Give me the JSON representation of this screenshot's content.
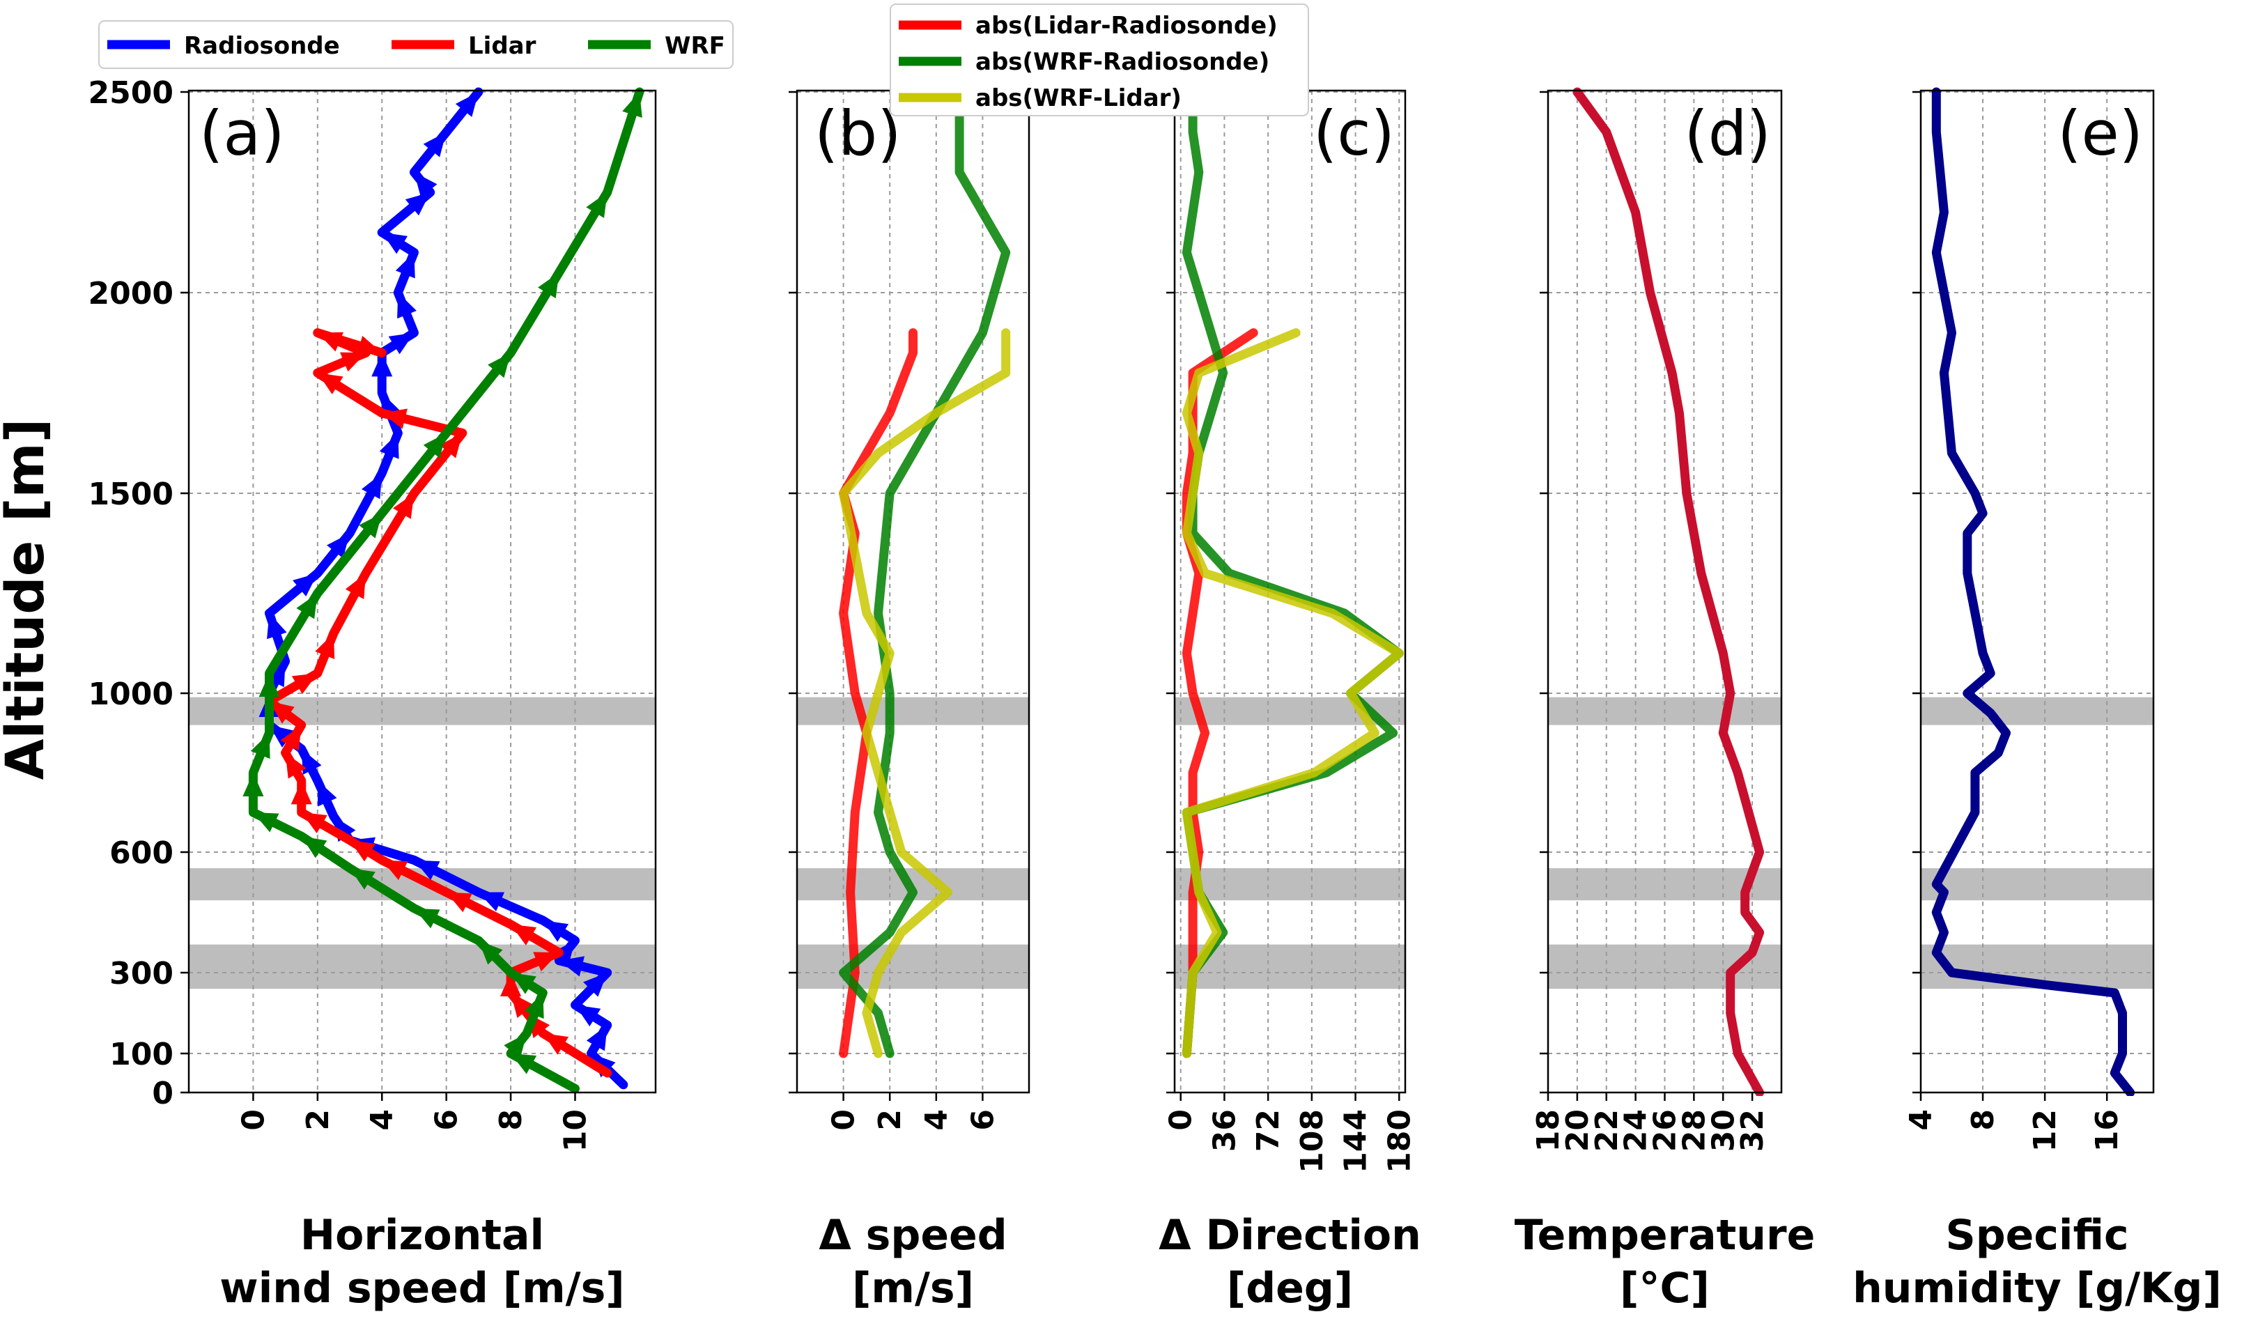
{
  "figure": {
    "y_label": "Altitude [m]"
  },
  "chart_data": [
    {
      "id": "a",
      "type": "line",
      "panel_label": "(a)",
      "xlabel": [
        "Horizontal",
        "wind speed [m/s]"
      ],
      "xlim": [
        -2,
        12.5
      ],
      "xticks": [
        0,
        2,
        4,
        6,
        8,
        10
      ],
      "ylim": [
        0,
        2500
      ],
      "yticks": [
        0,
        100,
        300,
        600,
        1000,
        1500,
        2000,
        2500
      ],
      "legend": {
        "location": "top",
        "entries": [
          "Radiosonde",
          "Lidar",
          "WRF"
        ]
      },
      "series": [
        {
          "name": "Radiosonde",
          "color": "#0000ff",
          "x": [
            11.5,
            10.5,
            11,
            10,
            11,
            9.5,
            10,
            9,
            7,
            5,
            3,
            2.5,
            2,
            1.5,
            0.5,
            0.5,
            1,
            0.5,
            2,
            3,
            4,
            4.5,
            4,
            4,
            5,
            4.5,
            5,
            4,
            5.5,
            5,
            6,
            7
          ],
          "y": [
            20,
            100,
            170,
            220,
            300,
            330,
            380,
            430,
            500,
            580,
            630,
            690,
            780,
            860,
            920,
            1000,
            1080,
            1200,
            1300,
            1400,
            1550,
            1650,
            1750,
            1850,
            1900,
            2000,
            2100,
            2150,
            2250,
            2300,
            2400,
            2500
          ]
        },
        {
          "name": "Lidar",
          "color": "#ff0000",
          "x": [
            11,
            9,
            8.5,
            8,
            8,
            9.5,
            8,
            6,
            4,
            3,
            1.5,
            1.5,
            1,
            1.5,
            0.5,
            2,
            2.5,
            3.5,
            5,
            6.5,
            4,
            2,
            3.5,
            2,
            4
          ],
          "y": [
            50,
            150,
            200,
            250,
            300,
            350,
            420,
            500,
            580,
            630,
            700,
            780,
            850,
            920,
            980,
            1050,
            1150,
            1300,
            1500,
            1650,
            1700,
            1800,
            1850,
            1900,
            1850
          ]
        },
        {
          "name": "WRF",
          "color": "#008000",
          "x": [
            10,
            8,
            8.5,
            9,
            8,
            7,
            5,
            3,
            1.5,
            0,
            0,
            0.5,
            0.5,
            2,
            4,
            6,
            8,
            9.5,
            11,
            12
          ],
          "y": [
            10,
            100,
            150,
            250,
            300,
            380,
            460,
            560,
            640,
            700,
            800,
            900,
            1050,
            1250,
            1450,
            1650,
            1850,
            2050,
            2250,
            2500
          ]
        }
      ]
    },
    {
      "id": "b",
      "type": "line",
      "panel_label": "(b)",
      "xlabel": [
        "Δ speed",
        "[m/s]"
      ],
      "xlim": [
        -2,
        8
      ],
      "xticks": [
        0,
        2,
        4,
        6
      ],
      "ylim": [
        0,
        2500
      ],
      "legend": {
        "location": "top",
        "entries": [
          "abs(Lidar-Radiosonde)",
          "abs(WRF-Radiosonde)",
          "abs(WRF-Lidar)"
        ]
      },
      "series": [
        {
          "name": "abs(Lidar-Radiosonde)",
          "color": "#ff0000",
          "x": [
            0,
            0.5,
            0.3,
            0.5,
            1,
            0.5,
            0,
            0.5,
            0,
            1,
            2,
            3,
            3
          ],
          "y": [
            100,
            300,
            500,
            700,
            900,
            1000,
            1200,
            1400,
            1500,
            1600,
            1700,
            1850,
            1900
          ]
        },
        {
          "name": "abs(WRF-Radiosonde)",
          "color": "#008000",
          "x": [
            2,
            1.5,
            0,
            2,
            3,
            2,
            1.5,
            2,
            2,
            1.5,
            2,
            5,
            6,
            7,
            5,
            5,
            5
          ],
          "y": [
            100,
            200,
            300,
            400,
            500,
            600,
            700,
            900,
            1000,
            1200,
            1500,
            1800,
            1900,
            2100,
            2300,
            2400,
            2500
          ]
        },
        {
          "name": "abs(WRF-Lidar)",
          "color": "#c8c800",
          "x": [
            1.5,
            1,
            1.5,
            2.5,
            4.5,
            2.5,
            2,
            1.5,
            1,
            1.5,
            2,
            1,
            0,
            1.5,
            4,
            7,
            7
          ],
          "y": [
            100,
            200,
            300,
            400,
            500,
            600,
            700,
            800,
            900,
            1000,
            1100,
            1200,
            1500,
            1600,
            1700,
            1800,
            1900
          ]
        }
      ]
    },
    {
      "id": "c",
      "type": "line",
      "panel_label": "(c)",
      "xlabel": [
        "Δ Direction",
        "[deg]"
      ],
      "xlim": [
        -5,
        185
      ],
      "xticks": [
        0,
        36,
        72,
        108,
        144,
        180
      ],
      "ylim": [
        0,
        2500
      ],
      "series": [
        {
          "name": "abs(Lidar-Radiosonde)",
          "color": "#ff0000",
          "x": [
            5,
            10,
            10,
            15,
            10,
            10,
            20,
            10,
            5,
            10,
            15,
            5,
            5,
            10,
            10,
            60
          ],
          "y": [
            100,
            300,
            500,
            600,
            700,
            800,
            900,
            1000,
            1100,
            1200,
            1300,
            1400,
            1500,
            1600,
            1800,
            1900
          ]
        },
        {
          "name": "abs(WRF-Radiosonde)",
          "color": "#008000",
          "x": [
            5,
            10,
            35,
            15,
            5,
            120,
            175,
            140,
            180,
            135,
            40,
            10,
            10,
            15,
            35,
            25,
            5,
            10,
            15,
            10,
            10
          ],
          "y": [
            100,
            300,
            400,
            500,
            700,
            800,
            900,
            1000,
            1100,
            1200,
            1300,
            1400,
            1500,
            1600,
            1800,
            1900,
            2100,
            2200,
            2300,
            2400,
            2500
          ]
        },
        {
          "name": "abs(WRF-Lidar)",
          "color": "#c8c800",
          "x": [
            5,
            10,
            30,
            15,
            5,
            110,
            160,
            140,
            180,
            125,
            20,
            5,
            15,
            5,
            15,
            95
          ],
          "y": [
            100,
            300,
            400,
            500,
            700,
            800,
            900,
            1000,
            1100,
            1200,
            1300,
            1400,
            1600,
            1700,
            1800,
            1900
          ]
        }
      ]
    },
    {
      "id": "d",
      "type": "line",
      "panel_label": "(d)",
      "xlabel": [
        "Temperature",
        "[°C]"
      ],
      "xlim": [
        18,
        34
      ],
      "xticks": [
        18,
        20,
        22,
        24,
        26,
        28,
        30,
        32
      ],
      "ylim": [
        0,
        2500
      ],
      "series": [
        {
          "name": "Temperature",
          "color": "#c8102e",
          "x": [
            32.5,
            31,
            30.5,
            30.5,
            30.5,
            32,
            32.5,
            31.5,
            31.5,
            32,
            32.5,
            31,
            30,
            30.5,
            30,
            28.5,
            27.5,
            27,
            26.5,
            25,
            24,
            22,
            20
          ],
          "y": [
            0,
            100,
            200,
            250,
            300,
            350,
            400,
            450,
            500,
            550,
            600,
            800,
            900,
            1000,
            1100,
            1300,
            1500,
            1700,
            1800,
            2000,
            2200,
            2400,
            2500
          ]
        }
      ]
    },
    {
      "id": "e",
      "type": "line",
      "panel_label": "(e)",
      "xlabel": [
        "Specific",
        "humidity [g/Kg]"
      ],
      "xlim": [
        4,
        19
      ],
      "xticks": [
        4,
        8,
        12,
        16
      ],
      "ylim": [
        0,
        2500
      ],
      "series": [
        {
          "name": "Specific humidity",
          "color": "#00008b",
          "x": [
            17.5,
            16.5,
            17,
            17,
            16.5,
            12,
            6,
            5,
            5.5,
            5,
            5.5,
            5,
            7.5,
            7.5,
            9,
            9.5,
            8.5,
            7,
            8.5,
            8,
            7,
            7,
            8,
            7.5,
            6,
            5.5,
            6,
            5.5,
            5,
            5.5,
            5,
            5
          ],
          "y": [
            0,
            50,
            100,
            200,
            250,
            270,
            300,
            350,
            400,
            450,
            500,
            520,
            700,
            800,
            850,
            900,
            950,
            1000,
            1050,
            1100,
            1300,
            1400,
            1450,
            1500,
            1600,
            1800,
            1900,
            2000,
            2100,
            2200,
            2400,
            2500
          ]
        }
      ]
    }
  ],
  "shaded_bands_m": [
    [
      920,
      990
    ],
    [
      480,
      560
    ],
    [
      260,
      370
    ]
  ]
}
